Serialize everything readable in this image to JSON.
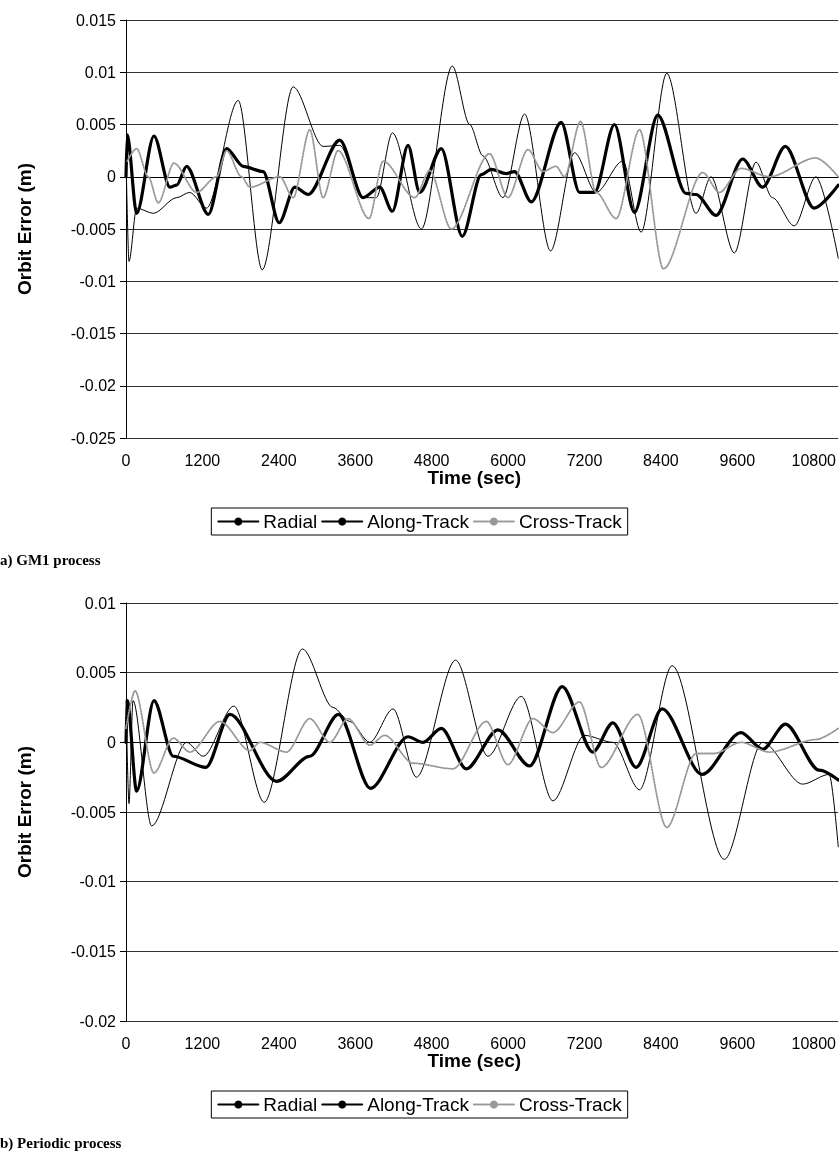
{
  "chart_data": [
    {
      "type": "line",
      "xlabel": "Time (sec)",
      "ylabel": "Orbit Error (m)",
      "annotations": [
        "a) GM1 process"
      ],
      "xlim": [
        0,
        11185
      ],
      "xticks": [
        0,
        1200,
        2400,
        3600,
        4800,
        6000,
        7200,
        8400,
        9600,
        10800
      ],
      "ylim": [
        -0.025,
        0.015
      ],
      "yticks": [
        -0.025,
        -0.02,
        -0.015,
        -0.01,
        -0.005,
        0,
        0.005,
        0.01,
        0.015
      ],
      "grid": "y",
      "legend": "bottom",
      "series": [
        {
          "name": "Radial",
          "color": "#000000",
          "line_style": "solid",
          "x": [
            0,
            47,
            167,
            430,
            795,
            1000,
            1265,
            1762,
            2139,
            2625,
            3095,
            3357,
            3723,
            3932,
            4183,
            4638,
            5124,
            5396,
            5605,
            5919,
            6259,
            6667,
            7044,
            7383,
            7801,
            8089,
            8492,
            8952,
            9187,
            9553,
            9893,
            10150,
            10494,
            10834,
            11185
          ],
          "values": [
            0.002,
            -0.0081,
            -0.003,
            -0.0035,
            -0.002,
            -0.0015,
            -0.003,
            0.0073,
            -0.0089,
            0.0086,
            0.0029,
            0.003,
            -0.002,
            -0.002,
            0.0042,
            -0.005,
            0.0106,
            0.005,
            0.002,
            -0.002,
            0.006,
            -0.0071,
            0.0023,
            -0.0015,
            0.0015,
            -0.0053,
            0.0099,
            -0.0035,
            0,
            -0.0073,
            0.0014,
            -0.002,
            -0.0047,
            0,
            -0.0078
          ]
        },
        {
          "name": "Along-Track",
          "color": "#000000",
          "line_style": "solid",
          "x": [
            0,
            20,
            167,
            439,
            690,
            795,
            952,
            1292,
            1579,
            1841,
            2154,
            2405,
            2651,
            2860,
            3357,
            3723,
            3985,
            4183,
            4429,
            4612,
            4952,
            5281,
            5579,
            5736,
            5971,
            6102,
            6364,
            6834,
            7122,
            7357,
            7671,
            7984,
            8350,
            8795,
            8952,
            9265,
            9684,
            9997,
            10354,
            10804,
            11185
          ],
          "values": [
            0,
            0.004,
            -0.0035,
            0.0039,
            -0.001,
            -0.0008,
            0.001,
            -0.0036,
            0.0027,
            0.001,
            0.0005,
            -0.0044,
            -0.001,
            -0.0017,
            0.0035,
            -0.002,
            -0.001,
            -0.0033,
            0.003,
            -0.0015,
            0.0027,
            -0.0057,
            0.0002,
            0.0007,
            0.0003,
            0.0005,
            -0.0024,
            0.0052,
            -0.0015,
            -0.0015,
            0.005,
            -0.0034,
            0.0059,
            -0.0016,
            -0.0017,
            -0.0037,
            0.0017,
            -0.001,
            0.0029,
            -0.003,
            -0.0008
          ]
        },
        {
          "name": "Cross-Track",
          "color": "#999999",
          "line_style": "dotted",
          "x": [
            20,
            167,
            350,
            507,
            753,
            1108,
            1423,
            1579,
            1814,
            1945,
            2416,
            2625,
            2886,
            3095,
            3330,
            3817,
            4037,
            4534,
            4769,
            5108,
            5710,
            5997,
            6312,
            6547,
            6754,
            6885,
            7138,
            7383,
            7697,
            8064,
            8440,
            9057,
            9318,
            9658,
            10103,
            10834,
            11185
          ],
          "values": [
            0.0015,
            0.0027,
            0,
            -0.0025,
            0.0013,
            -0.0015,
            0,
            0.0025,
            0,
            -0.001,
            0,
            -0.002,
            0.0045,
            -0.002,
            0.0025,
            -0.004,
            0.0015,
            -0.002,
            0.0006,
            -0.005,
            0.0022,
            -0.002,
            0.0026,
            0.0005,
            0.001,
            0,
            0.0053,
            -0.0015,
            -0.004,
            0.0045,
            -0.0088,
            0.0004,
            -0.0015,
            0.0008,
            0,
            0.0018,
            0
          ]
        }
      ]
    },
    {
      "type": "line",
      "xlabel": "Time (sec)",
      "ylabel": "Orbit Error (m)",
      "annotations": [
        "b) Periodic process"
      ],
      "xlim": [
        0,
        11185
      ],
      "xticks": [
        0,
        1200,
        2400,
        3600,
        4800,
        6000,
        7200,
        8400,
        9600,
        10800
      ],
      "ylim": [
        -0.02,
        0.01
      ],
      "yticks": [
        -0.02,
        -0.015,
        -0.01,
        -0.005,
        0,
        0.005,
        0.01
      ],
      "grid": "y",
      "legend": "bottom",
      "series": [
        {
          "name": "Radial",
          "color": "#000000",
          "line_style": "solid",
          "x": [
            0,
            47,
            110,
            403,
            952,
            1213,
            1694,
            2170,
            2771,
            3252,
            3514,
            3828,
            4194,
            4560,
            5177,
            5684,
            6207,
            6704,
            7200,
            7645,
            8064,
            8576,
            9396,
            9997,
            10625,
            11043,
            11185
          ],
          "values": [
            0.003,
            -0.0044,
            0.003,
            -0.006,
            0,
            -0.001,
            0.0026,
            -0.0043,
            0.0067,
            0.0025,
            0.0015,
            0,
            0.0024,
            -0.0025,
            0.0059,
            -0.001,
            0.0033,
            -0.0042,
            0.0005,
            0,
            -0.0034,
            0.0055,
            -0.0084,
            0,
            -0.003,
            -0.0023,
            -0.0075
          ]
        },
        {
          "name": "Along-Track",
          "color": "#000000",
          "line_style": "solid",
          "x": [
            0,
            20,
            167,
            439,
            742,
            1255,
            1631,
            2364,
            2886,
            3336,
            3838,
            4429,
            4665,
            4952,
            5344,
            5840,
            6338,
            6850,
            7331,
            7645,
            8011,
            8419,
            9046,
            9658,
            9997,
            10354,
            10886,
            11185
          ],
          "values": [
            0,
            0.003,
            -0.0035,
            0.003,
            -0.001,
            -0.0018,
            0.002,
            -0.0028,
            -0.001,
            0.002,
            -0.0033,
            0.0004,
            0,
            0.001,
            -0.0019,
            0.0009,
            -0.0017,
            0.004,
            -0.0007,
            0.0014,
            -0.0018,
            0.0024,
            -0.0023,
            0.0007,
            -0.0005,
            0.0013,
            -0.002,
            -0.0027
          ]
        },
        {
          "name": "Cross-Track",
          "color": "#999999",
          "line_style": "dotted",
          "x": [
            0,
            141,
            439,
            742,
            1003,
            1475,
            1945,
            2102,
            2520,
            2886,
            3200,
            3488,
            3828,
            4063,
            4508,
            5134,
            5658,
            5997,
            6390,
            6704,
            7122,
            7462,
            8037,
            8492,
            8952,
            9240,
            9658,
            10103,
            10834,
            11185
          ],
          "values": [
            0.001,
            0.0037,
            -0.0022,
            0.0003,
            -0.0007,
            0.0015,
            -0.0006,
            0,
            -0.0007,
            0.0017,
            0,
            0.0017,
            -0.0002,
            0.0005,
            -0.0015,
            -0.0019,
            0.0015,
            -0.0016,
            0.0017,
            0.0007,
            0.0029,
            -0.0018,
            0.002,
            -0.0061,
            -0.0008,
            -0.0008,
            0,
            -0.0007,
            0.0002,
            0.001
          ]
        }
      ]
    }
  ]
}
